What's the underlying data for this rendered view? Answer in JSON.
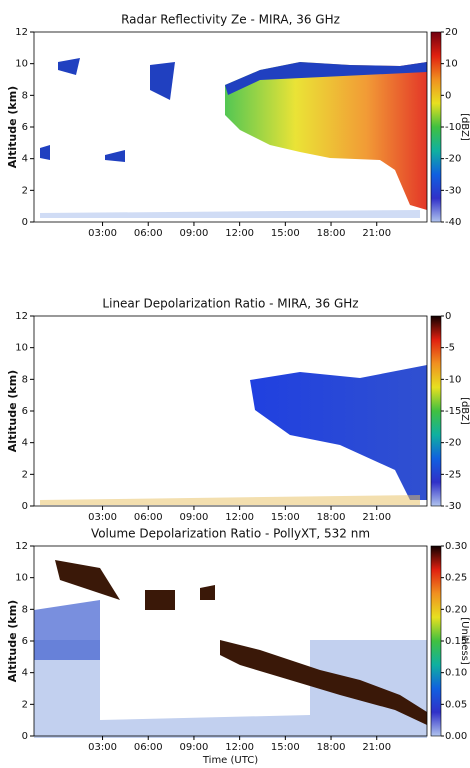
{
  "chart_data": [
    {
      "type": "heatmap",
      "title": "Radar Reflectivity Ze - MIRA, 36 GHz",
      "ylabel": "Altitude (km)",
      "xlim": [
        -1.5,
        24.3
      ],
      "xticks": [
        {
          "value": 3,
          "label": "03:00"
        },
        {
          "value": 6,
          "label": "06:00"
        },
        {
          "value": 9,
          "label": "09:00"
        },
        {
          "value": 12,
          "label": "12:00"
        },
        {
          "value": 15,
          "label": "15:00"
        },
        {
          "value": 18,
          "label": "18:00"
        },
        {
          "value": 21,
          "label": "21:00"
        }
      ],
      "ylim": [
        0,
        12
      ],
      "yticks": [
        0,
        2,
        4,
        6,
        8,
        10,
        12
      ],
      "clim": [
        -40,
        20
      ],
      "cticks": [
        -40,
        -30,
        -20,
        -10,
        0,
        10,
        20
      ],
      "clabel": "[dBZ]",
      "colormap": [
        "#b0c4ee",
        "#3030c8",
        "#1060e0",
        "#10b0a0",
        "#40c040",
        "#e8e020",
        "#f09020",
        "#e02010",
        "#700010"
      ]
    },
    {
      "type": "heatmap",
      "title": "Linear Depolarization Ratio - MIRA, 36 GHz",
      "ylabel": "Altitude (km)",
      "xlim": [
        -1.5,
        24.3
      ],
      "xticks": [
        {
          "value": 3,
          "label": "03:00"
        },
        {
          "value": 6,
          "label": "06:00"
        },
        {
          "value": 9,
          "label": "09:00"
        },
        {
          "value": 12,
          "label": "12:00"
        },
        {
          "value": 15,
          "label": "15:00"
        },
        {
          "value": 18,
          "label": "18:00"
        },
        {
          "value": 21,
          "label": "21:00"
        }
      ],
      "ylim": [
        0,
        12
      ],
      "yticks": [
        0,
        2,
        4,
        6,
        8,
        10,
        12
      ],
      "clim": [
        -30,
        0
      ],
      "cticks": [
        0,
        -5,
        -10,
        -15,
        -20,
        -25,
        -30
      ],
      "clabel": "[dBZ]",
      "colormap": [
        "#b0c4ee",
        "#3030c8",
        "#1060e0",
        "#10b0a0",
        "#40c040",
        "#e8e020",
        "#f09020",
        "#e02010",
        "#100000"
      ]
    },
    {
      "type": "heatmap",
      "title": "Volume Depolarization Ratio - PollyXT, 532 nm",
      "ylabel": "Altitude (km)",
      "xlabel": "Time (UTC)",
      "xlim": [
        -1.5,
        24.3
      ],
      "xticks": [
        {
          "value": 3,
          "label": "03:00"
        },
        {
          "value": 6,
          "label": "06:00"
        },
        {
          "value": 9,
          "label": "09:00"
        },
        {
          "value": 12,
          "label": "12:00"
        },
        {
          "value": 15,
          "label": "15:00"
        },
        {
          "value": 18,
          "label": "18:00"
        },
        {
          "value": 21,
          "label": "21:00"
        }
      ],
      "ylim": [
        0,
        12
      ],
      "yticks": [
        0,
        2,
        4,
        6,
        8,
        10,
        12
      ],
      "clim": [
        0,
        0.3
      ],
      "cticks": [
        {
          "value": 0,
          "label": "0.00"
        },
        {
          "value": 0.05,
          "label": "0.05"
        },
        {
          "value": 0.1,
          "label": "0.10"
        },
        {
          "value": 0.15,
          "label": "0.15"
        },
        {
          "value": 0.2,
          "label": "0.20"
        },
        {
          "value": 0.25,
          "label": "0.25"
        },
        {
          "value": 0.3,
          "label": "0.30"
        }
      ],
      "clabel": "[Unitless]",
      "colormap": [
        "#b0c4ee",
        "#3030c8",
        "#1060e0",
        "#10b0a0",
        "#40c040",
        "#e8e020",
        "#f09020",
        "#e02010",
        "#100000"
      ]
    }
  ]
}
